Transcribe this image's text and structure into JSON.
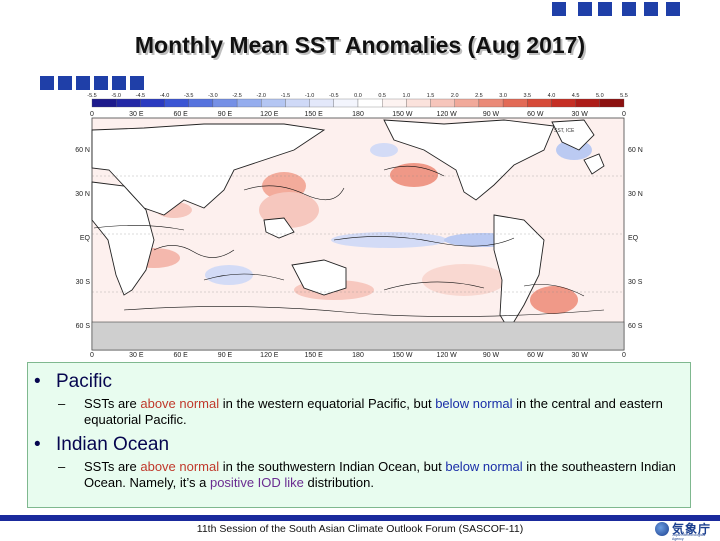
{
  "slide": {
    "title": "Monthly Mean SST Anomalies (Aug 2017)"
  },
  "map": {
    "colorbar_labels": [
      "-5.5",
      "-5.0",
      "-4.5",
      "-4.0",
      "-3.5",
      "-3.0",
      "-2.5",
      "-2.0",
      "-1.5",
      "-1.0",
      "-0.5",
      "0.0",
      "0.5",
      "1.0",
      "1.5",
      "2.0",
      "2.5",
      "3.0",
      "3.5",
      "4.0",
      "4.5",
      "5.0",
      "5.5"
    ],
    "colorbar_colors": [
      "#1d1a8c",
      "#2328a6",
      "#2a3ac0",
      "#3a55d4",
      "#5673de",
      "#7590e6",
      "#95adee",
      "#b4c6f3",
      "#cfd9f7",
      "#e3e8fa",
      "#f3f5fd",
      "#ffffff",
      "#fdf3f1",
      "#fbe2dc",
      "#f6c5bb",
      "#f1a99a",
      "#ea8a78",
      "#e26a56",
      "#d64a38",
      "#c52e24",
      "#ad1c18",
      "#8c1110"
    ],
    "lon_labels": [
      "0",
      "30 E",
      "60 E",
      "90 E",
      "120 E",
      "150 E",
      "180",
      "150 W",
      "120 W",
      "90 W",
      "60 W",
      "30 W",
      "0"
    ],
    "lat_labels": [
      "60 N",
      "30 N",
      "EQ",
      "30 S",
      "60 S"
    ],
    "legend_note": "SST, ICE"
  },
  "bullets": [
    {
      "heading": "Pacific",
      "parts": [
        {
          "text": "SSTs are ",
          "style": "plain"
        },
        {
          "text": "above normal",
          "style": "above"
        },
        {
          "text": " in the western equatorial Pacific, but ",
          "style": "plain"
        },
        {
          "text": "below normal",
          "style": "below"
        },
        {
          "text": " in the central and eastern equatorial Pacific.",
          "style": "plain"
        }
      ]
    },
    {
      "heading": "Indian Ocean",
      "parts": [
        {
          "text": "SSTs are ",
          "style": "plain"
        },
        {
          "text": "above normal",
          "style": "above"
        },
        {
          "text": " in the southwestern Indian Ocean, but ",
          "style": "plain"
        },
        {
          "text": "below normal",
          "style": "below"
        },
        {
          "text": " in the southeastern Indian Ocean. Namely, it’s a ",
          "style": "plain"
        },
        {
          "text": "positive IOD like",
          "style": "iod"
        },
        {
          "text": " distribution.",
          "style": "plain"
        }
      ]
    }
  ],
  "footer": {
    "text": "11th Session of the South Asian Climate Outlook Forum (SASCOF-11)",
    "logo_jp": "気象庁",
    "logo_en": "Japan Meteorological Agency"
  },
  "colors": {
    "accent": "#1f3fa8",
    "panel_bg": "#e8fcef",
    "above": "#c0392b",
    "below": "#1a2ea8",
    "iod": "#6a2c91"
  }
}
